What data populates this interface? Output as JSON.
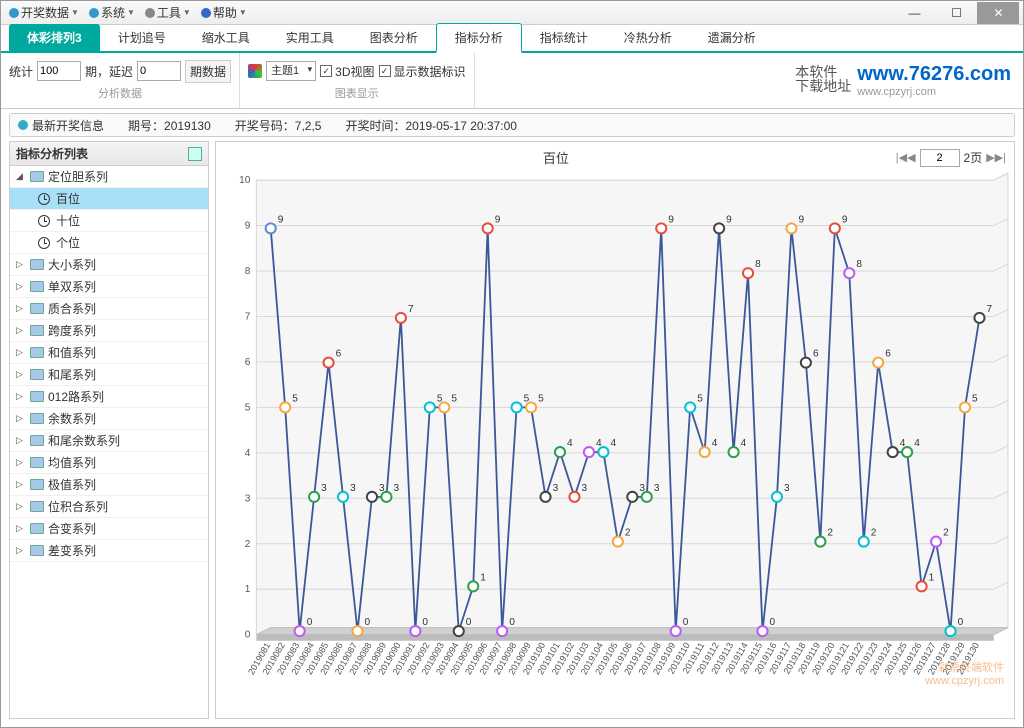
{
  "menubar": [
    {
      "icon": "#3399cc",
      "label": "开奖数据"
    },
    {
      "icon": "#3399cc",
      "label": "系统"
    },
    {
      "icon": "#888",
      "label": "工具"
    },
    {
      "icon": "#3366cc",
      "label": "帮助"
    }
  ],
  "headtabs": {
    "main": "体彩排列3",
    "items": [
      "计划追号",
      "缩水工具",
      "实用工具",
      "图表分析",
      "指标分析",
      "指标统计",
      "冷热分析",
      "遗漏分析"
    ],
    "active": "指标分析"
  },
  "toolbar": {
    "group1_label": "分析数据",
    "stat_label": "统计",
    "stat_val": "100",
    "period_label": "期，延迟",
    "delay_val": "0",
    "period_btn": "期数据",
    "group2_label": "图表显示",
    "theme_label": "主题1",
    "chk_3d": "3D视图",
    "chk_data": "显示数据标识",
    "brand_script1": "本软件",
    "brand_script2": "下载地址",
    "brand_url": "www.76276.com",
    "brand_sub": "www.cpzyrj.com"
  },
  "infobar": {
    "lead": "最新开奖信息",
    "issue_label": "期号：",
    "issue": "2019130",
    "code_label": "开奖号码：",
    "code": "7,2,5",
    "time_label": "开奖时间：",
    "time": "2019-05-17 20:37:00"
  },
  "sidebar": {
    "title": "指标分析列表",
    "expanded": {
      "label": "定位胆系列",
      "children": [
        "百位",
        "十位",
        "个位"
      ],
      "selected": "百位"
    },
    "folders": [
      "大小系列",
      "单双系列",
      "质合系列",
      "跨度系列",
      "和值系列",
      "和尾系列",
      "012路系列",
      "余数系列",
      "和尾余数系列",
      "均值系列",
      "极值系列",
      "位积合系列",
      "合变系列",
      "差变系列"
    ]
  },
  "chart": {
    "title": "百位",
    "page_val": "2",
    "page_suffix": "2页",
    "ylim": [
      0,
      10
    ],
    "ytick_step": 1,
    "xstart": 2019081,
    "xcount": 50,
    "values": [
      9,
      5,
      0,
      3,
      6,
      3,
      0,
      3,
      3,
      7,
      0,
      5,
      5,
      0,
      1,
      9,
      0,
      5,
      5,
      3,
      4,
      3,
      4,
      4,
      2,
      3,
      3,
      9,
      0,
      5,
      4,
      9,
      4,
      8,
      0,
      3,
      9,
      6,
      2,
      9,
      8,
      2,
      6,
      4,
      4,
      1,
      2,
      0,
      5,
      7
    ],
    "colors": [
      "#5b8bd4",
      "#f4a742",
      "#bf5af2",
      "#2fa04a",
      "#e74c3c",
      "#00c2d1",
      "#f4a742",
      "#444",
      "#2fa04a",
      "#e74c3c",
      "#bf5af2",
      "#00c2d1",
      "#f4a742",
      "#444",
      "#2fa04a",
      "#e74c3c",
      "#bf5af2",
      "#00c2d1",
      "#f4a742",
      "#444",
      "#2fa04a",
      "#e74c3c",
      "#bf5af2",
      "#00c2d1",
      "#f4a742",
      "#444",
      "#2fa04a",
      "#e74c3c",
      "#bf5af2",
      "#00c2d1",
      "#f4a742",
      "#444",
      "#2fa04a",
      "#e74c3c",
      "#bf5af2",
      "#00c2d1",
      "#f4a742",
      "#444",
      "#2fa04a",
      "#e74c3c",
      "#bf5af2",
      "#00c2d1",
      "#f4a742",
      "#444",
      "#2fa04a",
      "#e74c3c",
      "#bf5af2",
      "#00c2d1",
      "#f4a742",
      "#444"
    ],
    "line_color": "#3b5998",
    "grid_color": "#d8d8d8",
    "axis_font": 10,
    "label_font": 10,
    "marker_r": 5,
    "bg": "#ffffff",
    "floor_color": "#d0d0d0"
  },
  "watermark": {
    "l1": "彩票终端软件",
    "l2": "www.cpzyrj.com"
  }
}
